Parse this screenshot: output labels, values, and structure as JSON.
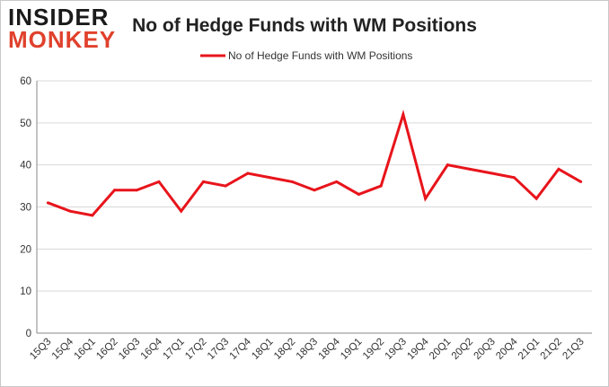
{
  "logo": {
    "line1": "INSIDER",
    "line2": "MONKEY"
  },
  "colors": {
    "series": "#e8141b",
    "grid": "#d9d9d9",
    "axis": "#888888",
    "logo_accent": "#e0412c"
  },
  "chart_data": {
    "type": "line",
    "title": "No of Hedge Funds with WM Positions",
    "xlabel": "",
    "ylabel": "",
    "ylim": [
      0,
      60
    ],
    "yticks": [
      0,
      10,
      20,
      30,
      40,
      50,
      60
    ],
    "legend": "top-center",
    "grid": true,
    "categories": [
      "15Q3",
      "15Q4",
      "16Q1",
      "16Q2",
      "16Q3",
      "16Q4",
      "17Q1",
      "17Q2",
      "17Q3",
      "17Q4",
      "18Q1",
      "18Q2",
      "18Q3",
      "18Q4",
      "19Q1",
      "19Q2",
      "19Q3",
      "19Q4",
      "20Q1",
      "20Q2",
      "20Q3",
      "20Q4",
      "21Q1",
      "21Q2",
      "21Q3"
    ],
    "series": [
      {
        "name": "No of Hedge Funds with WM Positions",
        "values": [
          31,
          29,
          28,
          34,
          34,
          36,
          29,
          36,
          35,
          38,
          37,
          36,
          34,
          36,
          33,
          35,
          52,
          32,
          40,
          39,
          38,
          37,
          32,
          39,
          36
        ]
      }
    ]
  }
}
